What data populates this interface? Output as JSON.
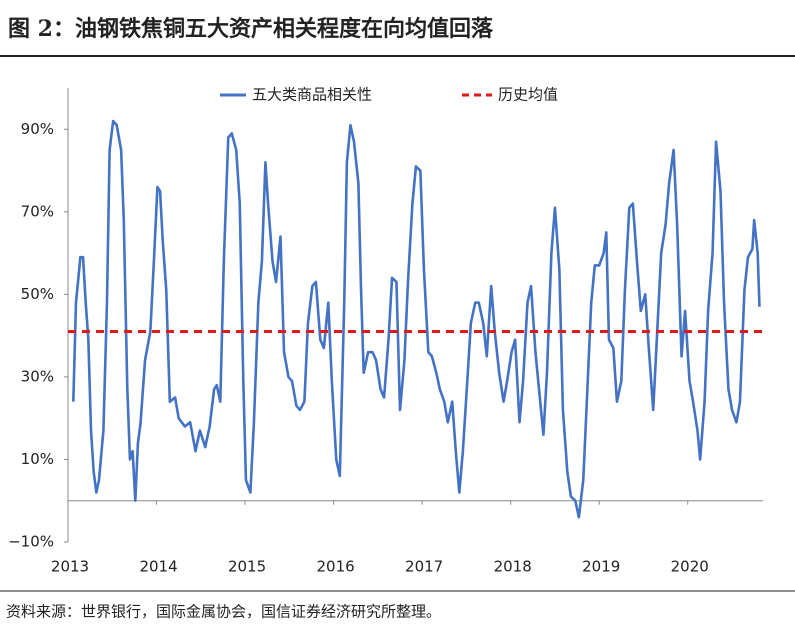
{
  "title": "图 2：油钢铁焦铜五大资产相关程度在向均值回落",
  "source": "资料来源：世界银行，国际金属协会，国信证券经济研究所整理。",
  "chart_data": {
    "type": "line",
    "x": [
      2013.06,
      2013.09,
      2013.14,
      2013.17,
      2013.2,
      2013.23,
      2013.26,
      2013.29,
      2013.32,
      2013.35,
      2013.4,
      2013.44,
      2013.47,
      2013.51,
      2013.55,
      2013.6,
      2013.63,
      2013.67,
      2013.7,
      2013.73,
      2013.76,
      2013.79,
      2013.82,
      2013.87,
      2013.93,
      2013.97,
      2014.01,
      2014.04,
      2014.07,
      2014.11,
      2014.15,
      2014.21,
      2014.25,
      2014.32,
      2014.38,
      2014.44,
      2014.49,
      2014.55,
      2014.6,
      2014.65,
      2014.68,
      2014.72,
      2014.76,
      2014.81,
      2014.85,
      2014.9,
      2014.94,
      2014.98,
      2015.01,
      2015.06,
      2015.1,
      2015.15,
      2015.19,
      2015.23,
      2015.26,
      2015.31,
      2015.35,
      2015.4,
      2015.44,
      2015.49,
      2015.53,
      2015.58,
      2015.62,
      2015.67,
      2015.71,
      2015.76,
      2015.8,
      2015.85,
      2015.89,
      2015.94,
      2015.98,
      2016.03,
      2016.07,
      2016.12,
      2016.15,
      2016.19,
      2016.23,
      2016.28,
      2016.31,
      2016.34,
      2016.39,
      2016.44,
      2016.48,
      2016.53,
      2016.57,
      2016.62,
      2016.66,
      2016.71,
      2016.75,
      2016.8,
      2016.84,
      2016.89,
      2016.93,
      2016.98,
      2017.02,
      2017.07,
      2017.11,
      2017.16,
      2017.2,
      2017.25,
      2017.29,
      2017.34,
      2017.38,
      2017.42,
      2017.46,
      2017.51,
      2017.55,
      2017.6,
      2017.64,
      2017.69,
      2017.73,
      2017.78,
      2017.82,
      2017.87,
      2017.92,
      2017.96,
      2018.01,
      2018.05,
      2018.1,
      2018.14,
      2018.19,
      2018.23,
      2018.28,
      2018.32,
      2018.37,
      2018.41,
      2018.46,
      2018.5,
      2018.55,
      2018.59,
      2018.64,
      2018.68,
      2018.73,
      2018.77,
      2018.82,
      2018.86,
      2018.91,
      2018.95,
      2019.0,
      2019.05,
      2019.08,
      2019.11,
      2019.16,
      2019.2,
      2019.25,
      2019.29,
      2019.34,
      2019.38,
      2019.43,
      2019.47,
      2019.52,
      2019.56,
      2019.61,
      2019.66,
      2019.7,
      2019.75,
      2019.79,
      2019.84,
      2019.88,
      2019.93,
      2019.97,
      2020.02,
      2020.06,
      2020.11,
      2020.14,
      2020.19,
      2020.23,
      2020.28,
      2020.32,
      2020.37,
      2020.41,
      2020.46,
      2020.5,
      2020.55,
      2020.59,
      2020.64,
      2020.68,
      2020.73,
      2020.75,
      2020.79,
      2020.81
    ],
    "series": [
      {
        "name": "五大类商品相关性",
        "color": "#4472c4",
        "values": [
          24,
          48,
          59,
          59,
          48,
          39,
          17,
          7,
          2,
          5,
          17,
          48,
          85,
          92,
          91,
          85,
          68,
          27,
          10,
          12,
          0,
          14,
          19,
          34,
          41,
          58,
          76,
          75,
          63,
          51,
          24,
          25,
          20,
          18,
          19,
          12,
          17,
          13,
          18,
          27,
          28,
          24,
          58,
          88,
          89,
          85,
          72,
          29,
          5,
          2,
          19,
          48,
          58,
          82,
          72,
          58,
          53,
          64,
          36,
          30,
          29,
          23,
          22,
          24,
          43,
          52,
          53,
          39,
          37,
          48,
          29,
          10,
          6,
          48,
          82,
          91,
          87,
          77,
          51,
          31,
          36,
          36,
          34,
          27,
          25,
          39,
          54,
          53,
          22,
          34,
          53,
          72,
          81,
          80,
          56,
          36,
          35,
          31,
          27,
          24,
          19,
          24,
          12,
          2,
          12,
          29,
          43,
          48,
          48,
          43,
          35,
          52,
          41,
          31,
          24,
          29,
          36,
          39,
          19,
          29,
          48,
          52,
          36,
          27,
          16,
          31,
          60,
          71,
          56,
          22,
          7,
          1,
          0,
          -4,
          5,
          24,
          48,
          57,
          57,
          60,
          65,
          39,
          37,
          24,
          29,
          51,
          71,
          72,
          57,
          46,
          50,
          37,
          22,
          43,
          60,
          67,
          77,
          85,
          67,
          35,
          46,
          29,
          24,
          17,
          10,
          24,
          46,
          60,
          87,
          75,
          48,
          27,
          22,
          19,
          24,
          51,
          59,
          61,
          68,
          60,
          47
        ]
      }
    ],
    "mean": {
      "name": "历史均值",
      "value": 41,
      "color": "#e0191b"
    },
    "xlim": [
      2013,
      2020.85
    ],
    "xticks": [
      2013,
      2014,
      2015,
      2016,
      2017,
      2018,
      2019,
      2020
    ],
    "ylim": [
      -10,
      100
    ],
    "yticks": [
      {
        "value": -10,
        "label": "−10%"
      },
      {
        "value": 10,
        "label": "10%"
      },
      {
        "value": 30,
        "label": "30%"
      },
      {
        "value": 50,
        "label": "50%"
      },
      {
        "value": 70,
        "label": "70%"
      },
      {
        "value": 90,
        "label": "90%"
      }
    ],
    "grid": false,
    "legend": "top"
  }
}
